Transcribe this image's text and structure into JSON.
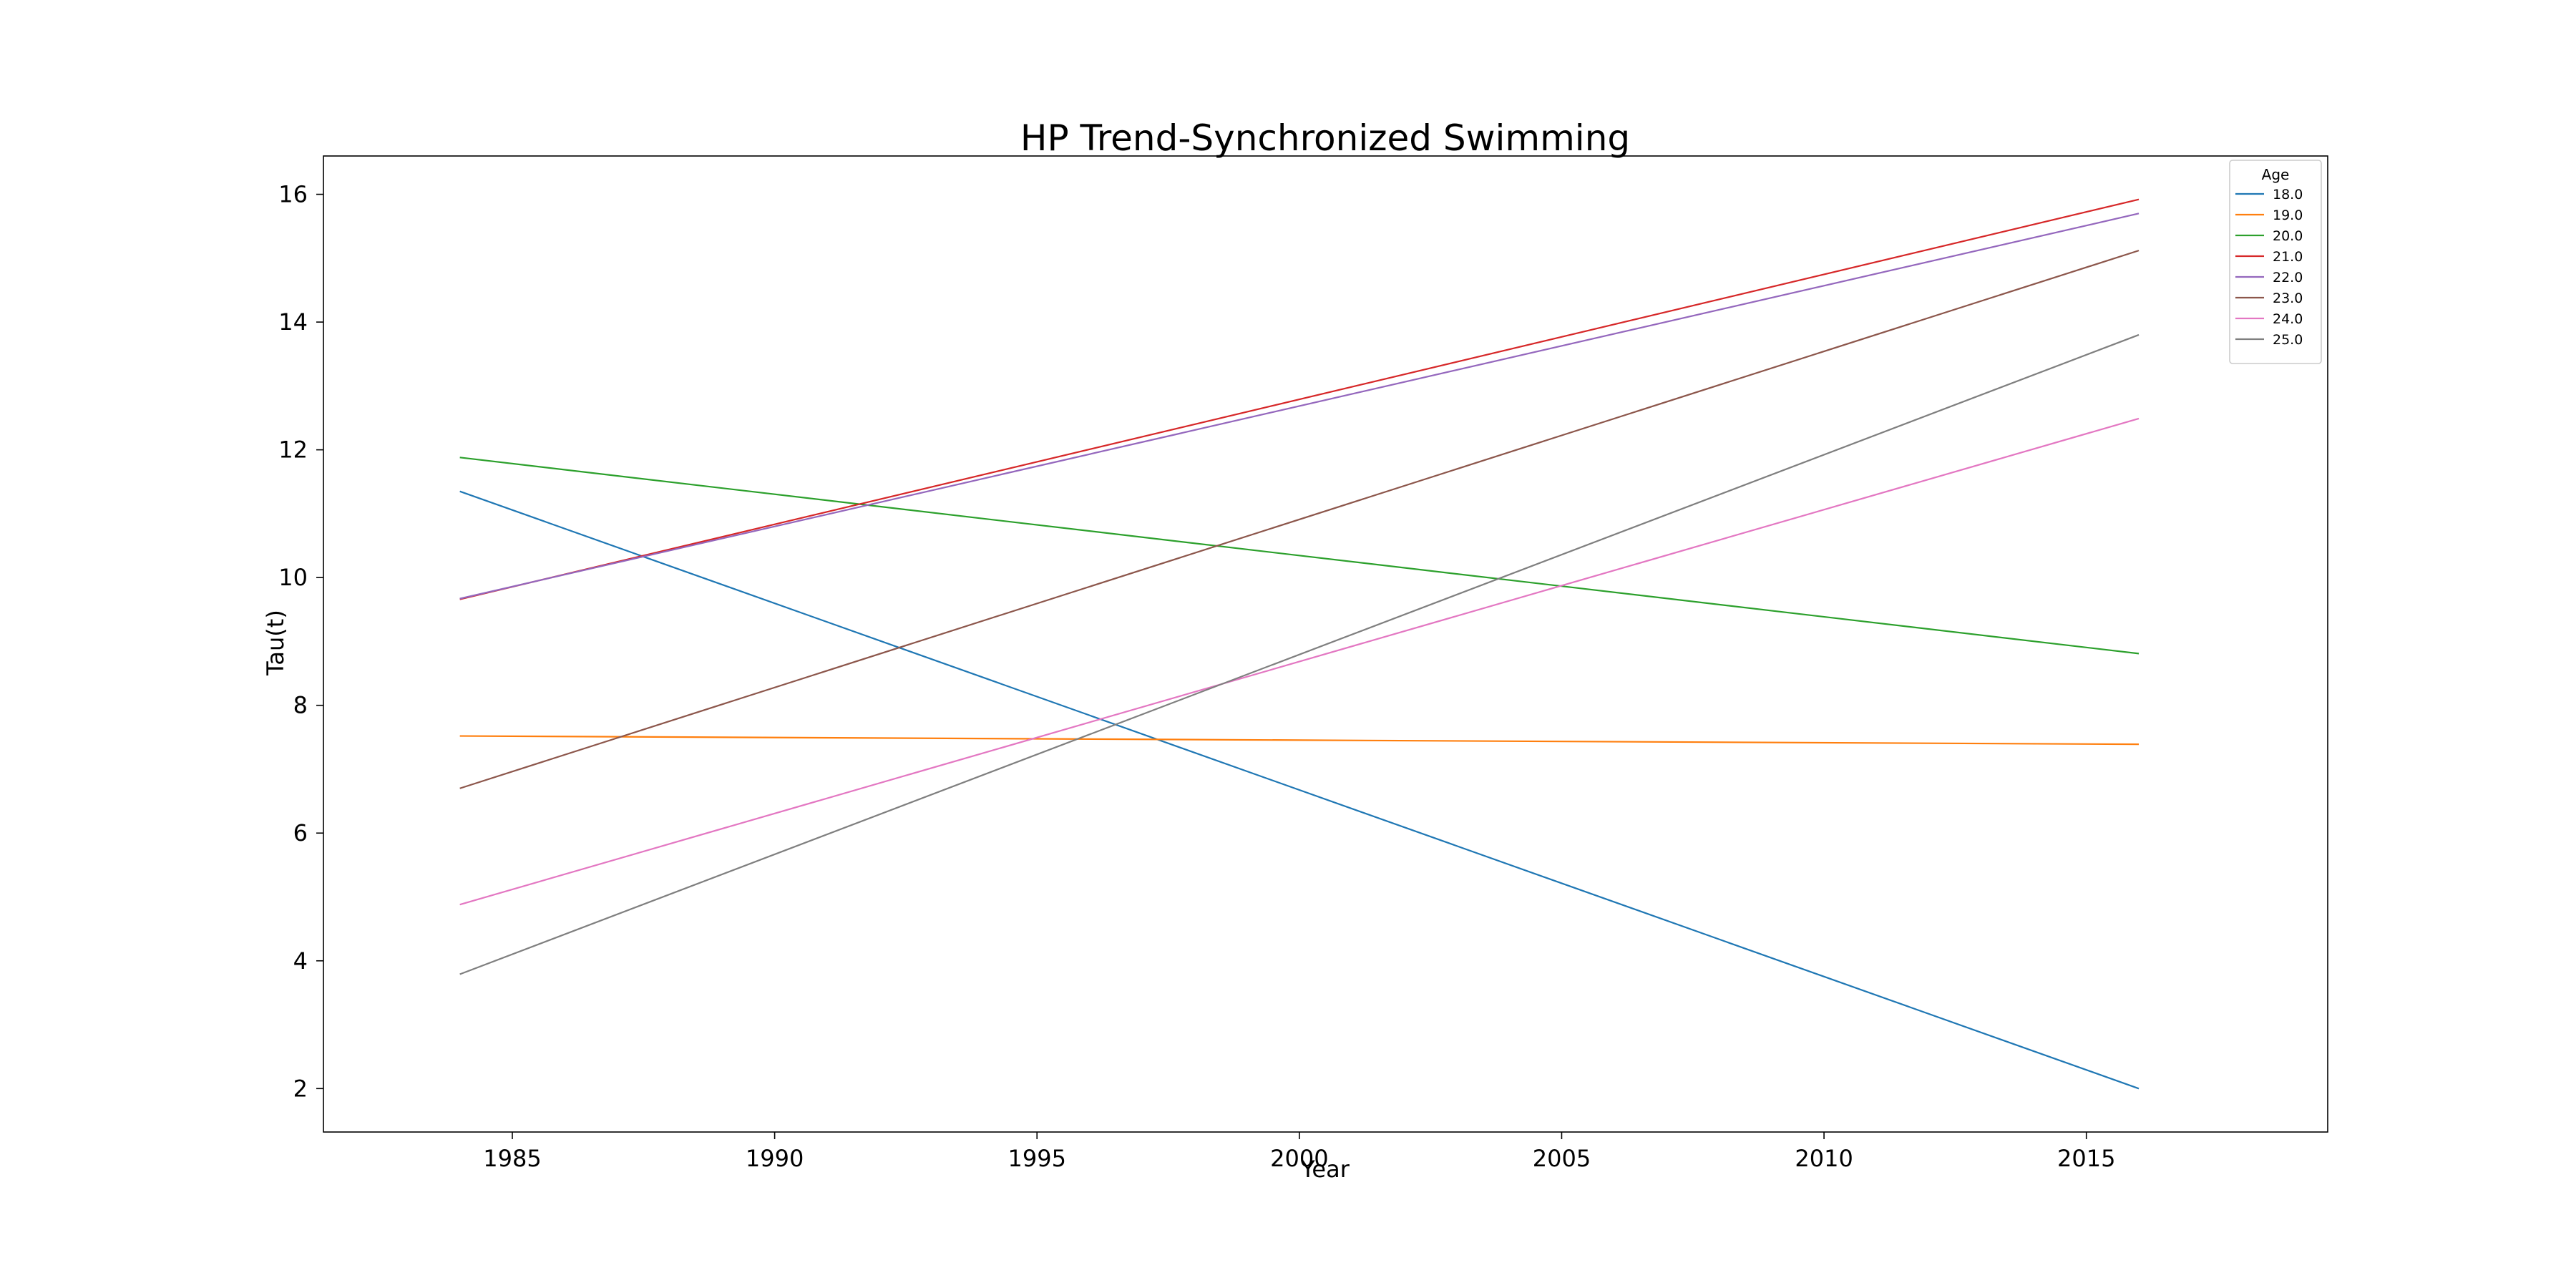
{
  "chart_data": {
    "type": "line",
    "title": "HP Trend-Synchronized Swimming",
    "xlabel": "Year",
    "ylabel": "Tau(t)",
    "xlim": [
      1981.4,
      2019.6
    ],
    "ylim": [
      1.32,
      16.6
    ],
    "xticks": [
      1985,
      1990,
      1995,
      2000,
      2005,
      2010,
      2015
    ],
    "yticks": [
      2,
      4,
      6,
      8,
      10,
      12,
      14,
      16
    ],
    "grid": false,
    "legend": {
      "title": "Age",
      "placement": "top-right"
    },
    "x": [
      1984,
      2016
    ],
    "series": [
      {
        "name": "18.0",
        "color": "#1f77b4",
        "values": [
          11.35,
          2.0
        ]
      },
      {
        "name": "19.0",
        "color": "#ff7f0e",
        "values": [
          7.52,
          7.39
        ]
      },
      {
        "name": "20.0",
        "color": "#2ca02c",
        "values": [
          11.88,
          8.81
        ]
      },
      {
        "name": "21.0",
        "color": "#d62728",
        "values": [
          9.66,
          15.92
        ]
      },
      {
        "name": "22.0",
        "color": "#9467bd",
        "values": [
          9.67,
          15.7
        ]
      },
      {
        "name": "23.0",
        "color": "#8c564b",
        "values": [
          6.7,
          15.12
        ]
      },
      {
        "name": "24.0",
        "color": "#e377c2",
        "values": [
          4.88,
          12.49
        ]
      },
      {
        "name": "25.0",
        "color": "#7f7f7f",
        "values": [
          3.79,
          13.8
        ]
      }
    ]
  }
}
